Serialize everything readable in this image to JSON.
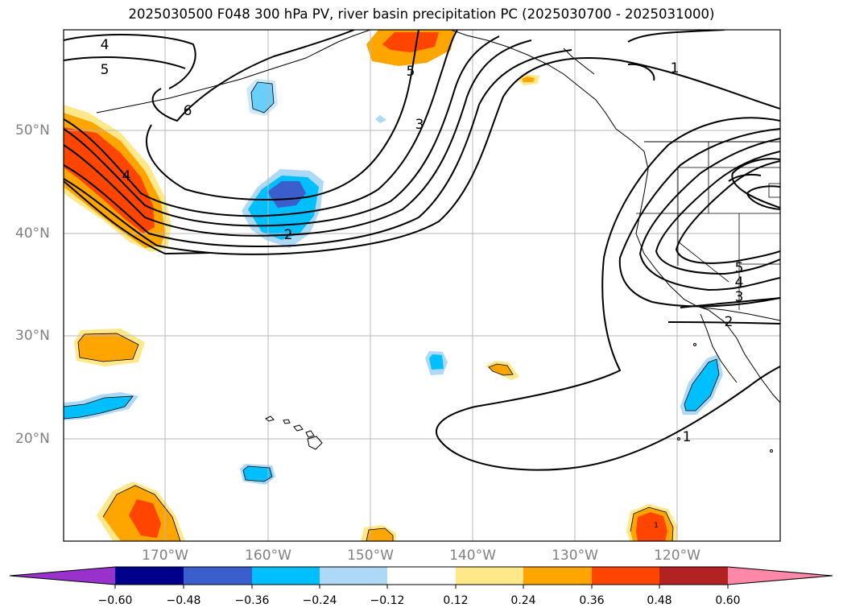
{
  "title": "2025030500 F048 300 hPa PV, river basin precipitation PC (2025030700 - 2025031000)",
  "map": {
    "lat_labels": [
      "50°N",
      "40°N",
      "30°N",
      "20°N"
    ],
    "lon_labels": [
      "170°W",
      "160°W",
      "150°W",
      "140°W",
      "130°W",
      "120°W"
    ],
    "contour_labels": [
      "4",
      "5",
      "6",
      "4",
      "2",
      "5",
      "3",
      "1",
      "1",
      "5",
      "4",
      "3",
      "2",
      "1"
    ]
  },
  "colorbar": {
    "ticks": [
      "−0.60",
      "−0.48",
      "−0.36",
      "−0.24",
      "−0.12",
      "0.12",
      "0.24",
      "0.36",
      "0.48",
      "0.60"
    ],
    "colors": [
      "#9932cc",
      "#00008b",
      "#3a5fcd",
      "#00bfff",
      "#add8f6",
      "#ffffff",
      "#ffe88a",
      "#ffa500",
      "#ff4500",
      "#b22222",
      "#ff88a8"
    ]
  }
}
